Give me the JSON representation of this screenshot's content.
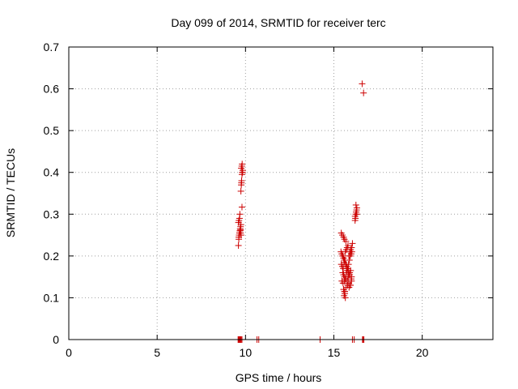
{
  "chart_data": {
    "type": "scatter",
    "title": "Day 099 of 2014, SRMTID for receiver terc",
    "xlabel": "GPS time / hours",
    "ylabel": "SRMTID / TECUs",
    "xlim": [
      0,
      24
    ],
    "ylim": [
      0,
      0.7
    ],
    "xticks": [
      0,
      5,
      10,
      15,
      20
    ],
    "xtick_labels": [
      "0",
      "5",
      "10",
      "15",
      "20"
    ],
    "yticks": [
      0,
      0.1,
      0.2,
      0.3,
      0.4,
      0.5,
      0.6,
      0.7
    ],
    "ytick_labels": [
      "0",
      "0.1",
      "0.2",
      "0.3",
      "0.4",
      "0.5",
      "0.6",
      "0.7"
    ],
    "grid": true,
    "marker": "plus",
    "color": "#cc0000",
    "series": [
      {
        "x": [
          9.6,
          9.62,
          9.64,
          9.66,
          9.68,
          9.7,
          9.72,
          9.74,
          9.6,
          9.63,
          9.66,
          9.69,
          9.72,
          9.75,
          9.62,
          9.68,
          9.74,
          9.76,
          9.78,
          9.8,
          9.82,
          9.84,
          9.76,
          9.79,
          9.81,
          9.83,
          9.77,
          9.8,
          9.72,
          9.58,
          9.6,
          9.65,
          9.7,
          9.75,
          9.8,
          9.62,
          9.67,
          9.73,
          10.65,
          10.75,
          14.22,
          15.42,
          15.48,
          15.55,
          15.6,
          15.68,
          15.4,
          15.45,
          15.5,
          15.55,
          15.6,
          15.65,
          15.7,
          15.75,
          15.8,
          15.85,
          15.9,
          15.95,
          16.0,
          16.05,
          15.42,
          15.48,
          15.53,
          15.58,
          15.63,
          15.68,
          15.73,
          15.78,
          15.83,
          15.88,
          15.93,
          15.98,
          16.02,
          15.5,
          15.55,
          15.6,
          15.65,
          15.7,
          15.75,
          15.8,
          15.85,
          15.9,
          15.95,
          16.0,
          15.45,
          15.52,
          15.6,
          15.68,
          15.76,
          15.84,
          15.92,
          16.0,
          15.55,
          15.62,
          15.7,
          15.78,
          15.86,
          15.94,
          15.5,
          15.58,
          15.66,
          15.74,
          15.82,
          15.9,
          15.98,
          15.58,
          15.62,
          15.65,
          15.6,
          16.2,
          16.22,
          16.24,
          16.26,
          16.28,
          16.3,
          16.2,
          16.25,
          16.3,
          16.05,
          16.15,
          16.65,
          16.7,
          16.6,
          16.68,
          16.62
        ],
        "y": [
          0.225,
          0.24,
          0.25,
          0.255,
          0.26,
          0.265,
          0.27,
          0.275,
          0.28,
          0.285,
          0.29,
          0.26,
          0.255,
          0.25,
          0.245,
          0.3,
          0.355,
          0.37,
          0.38,
          0.395,
          0.4,
          0.405,
          0.41,
          0.415,
          0.42,
          0.4,
          0.375,
          0.317,
          0.262,
          0,
          0,
          0,
          0,
          0,
          0,
          0,
          0,
          0,
          0,
          0,
          0,
          0.255,
          0.25,
          0.245,
          0.24,
          0.235,
          0.21,
          0.205,
          0.2,
          0.195,
          0.19,
          0.21,
          0.215,
          0.22,
          0.225,
          0.2,
          0.21,
          0.215,
          0.22,
          0.23,
          0.18,
          0.175,
          0.17,
          0.185,
          0.19,
          0.18,
          0.175,
          0.17,
          0.18,
          0.19,
          0.2,
          0.205,
          0.21,
          0.16,
          0.155,
          0.15,
          0.145,
          0.16,
          0.165,
          0.15,
          0.155,
          0.16,
          0.165,
          0.15,
          0.14,
          0.135,
          0.14,
          0.145,
          0.14,
          0.135,
          0.13,
          0.14,
          0.12,
          0.115,
          0.125,
          0.13,
          0.125,
          0.13,
          0.2,
          0.19,
          0.18,
          0.17,
          0.165,
          0.155,
          0.145,
          0.105,
          0.11,
          0.1,
          0.115,
          0.285,
          0.29,
          0.3,
          0.305,
          0.31,
          0.315,
          0.295,
          0.322,
          0.3,
          0,
          0,
          0,
          0,
          0.612,
          0.59,
          0
        ]
      }
    ]
  }
}
